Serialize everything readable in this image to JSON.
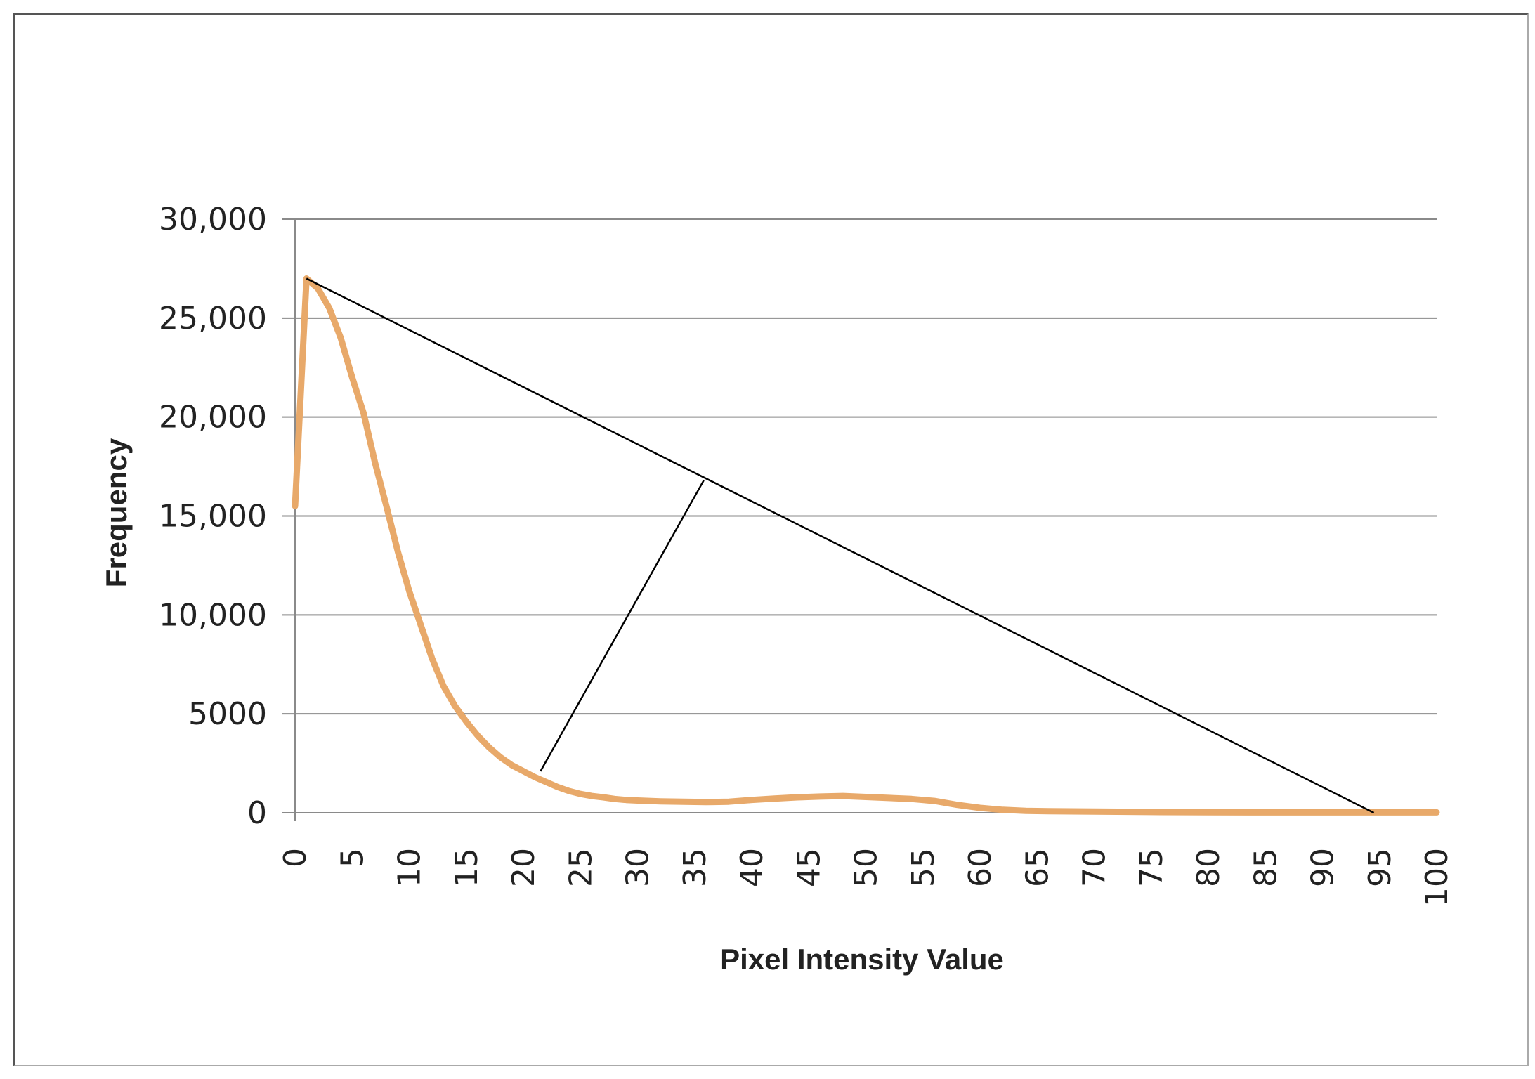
{
  "chart_data": {
    "type": "line",
    "title": "",
    "xlabel": "Pixel  Intensity Value",
    "ylabel": "Frequency",
    "xlim": [
      0,
      100
    ],
    "ylim": [
      0,
      30000
    ],
    "grid": true,
    "legend": "none",
    "x_ticks": [
      "0",
      "5",
      "10",
      "15",
      "20",
      "25",
      "30",
      "35",
      "40",
      "45",
      "50",
      "55",
      "60",
      "65",
      "70",
      "75",
      "80",
      "85",
      "90",
      "95",
      "100"
    ],
    "y_ticks": [
      {
        "value": 0,
        "label": "0"
      },
      {
        "value": 5000,
        "label": "5000"
      },
      {
        "value": 10000,
        "label": "10,000"
      },
      {
        "value": 15000,
        "label": "15,000"
      },
      {
        "value": 20000,
        "label": "20,000"
      },
      {
        "value": 25000,
        "label": "25,000"
      },
      {
        "value": 30000,
        "label": "30,000"
      }
    ],
    "series": [
      {
        "color": "#e8a96a",
        "x": [
          0,
          1,
          2,
          3,
          4,
          5,
          6,
          7,
          8,
          9,
          10,
          11,
          12,
          13,
          14,
          15,
          16,
          17,
          18,
          19,
          20,
          21,
          22,
          23,
          24,
          25,
          26,
          27,
          28,
          29,
          30,
          32,
          34,
          36,
          38,
          40,
          42,
          44,
          46,
          48,
          50,
          52,
          54,
          56,
          58,
          60,
          62,
          64,
          66,
          70,
          75,
          80,
          85,
          90,
          95,
          100
        ],
        "values": [
          15500,
          27000,
          26500,
          25500,
          24000,
          22000,
          20200,
          17700,
          15500,
          13200,
          11200,
          9500,
          7800,
          6400,
          5400,
          4600,
          3900,
          3300,
          2800,
          2400,
          2100,
          1800,
          1550,
          1300,
          1100,
          950,
          850,
          780,
          700,
          650,
          620,
          580,
          560,
          540,
          560,
          650,
          720,
          780,
          820,
          850,
          800,
          750,
          700,
          600,
          400,
          250,
          150,
          100,
          80,
          60,
          40,
          30,
          20,
          20,
          20,
          20
        ]
      }
    ],
    "annotations": {
      "diagonal_line": {
        "color": "#000000",
        "from": {
          "x": 1,
          "y": 27000
        },
        "to": {
          "x": 94.5,
          "y": 0
        }
      },
      "perpendicular_line": {
        "color": "#000000",
        "from": {
          "x": 21.5,
          "y": 2100
        },
        "to": {
          "x": 35.8,
          "y": 16800
        }
      }
    }
  }
}
